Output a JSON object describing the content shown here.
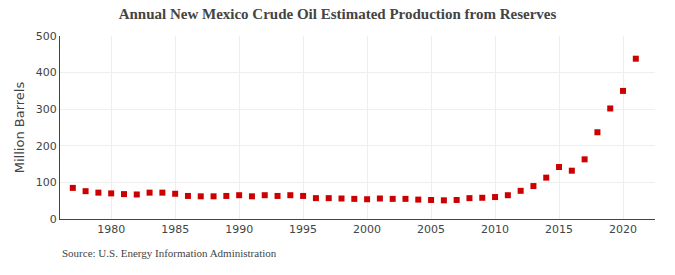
{
  "chart_data": {
    "type": "scatter",
    "title": "Annual New Mexico Crude Oil Estimated Production from Reserves",
    "ylabel": "Million Barrels",
    "annotations": [
      "Source: U.S. Energy Information Administration"
    ],
    "x": [
      1977,
      1978,
      1979,
      1980,
      1981,
      1982,
      1983,
      1984,
      1985,
      1986,
      1987,
      1988,
      1989,
      1990,
      1991,
      1992,
      1993,
      1994,
      1995,
      1996,
      1997,
      1998,
      1999,
      2000,
      2001,
      2002,
      2003,
      2004,
      2005,
      2006,
      2007,
      2008,
      2009,
      2010,
      2011,
      2012,
      2013,
      2014,
      2015,
      2016,
      2017,
      2018,
      2019,
      2020,
      2021
    ],
    "values": [
      85,
      76,
      72,
      70,
      68,
      67,
      72,
      72,
      69,
      63,
      62,
      62,
      63,
      65,
      62,
      65,
      63,
      65,
      63,
      57,
      57,
      56,
      55,
      54,
      56,
      55,
      55,
      53,
      52,
      51,
      52,
      57,
      58,
      60,
      65,
      77,
      90,
      113,
      142,
      132,
      163,
      237,
      302,
      350,
      438
    ],
    "color": "#cc0000",
    "marker": "square",
    "xlim": [
      1976,
      2022.5
    ],
    "ylim": [
      0,
      500
    ],
    "xticks": [
      1980,
      1985,
      1990,
      1995,
      2000,
      2005,
      2010,
      2015,
      2020
    ],
    "yticks": [
      0,
      100,
      200,
      300,
      400,
      500
    ],
    "grid": true
  }
}
